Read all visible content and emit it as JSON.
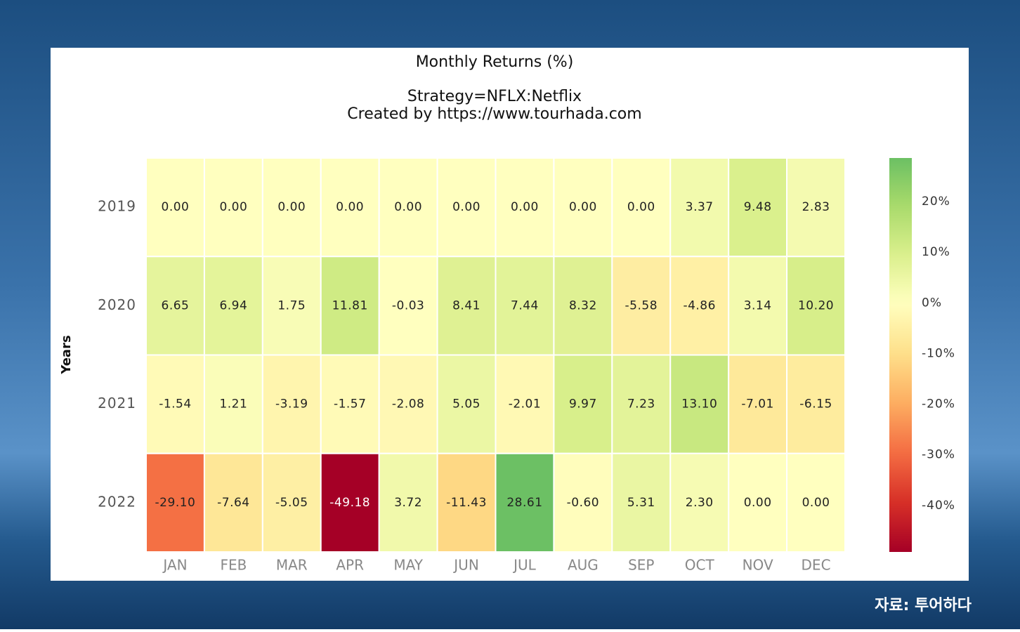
{
  "chart_data": {
    "type": "heatmap",
    "title": "Monthly Returns (%)",
    "subtitle": [
      "Strategy=NFLX:Netflix",
      "Created by https://www.tourhada.com"
    ],
    "y_label": "Years",
    "categories": [
      "JAN",
      "FEB",
      "MAR",
      "APR",
      "MAY",
      "JUN",
      "JUL",
      "AUG",
      "SEP",
      "OCT",
      "NOV",
      "DEC"
    ],
    "rows": [
      "2019",
      "2020",
      "2021",
      "2022"
    ],
    "values": [
      [
        0,
        0,
        0,
        0,
        0,
        0,
        0,
        0,
        0,
        3.37,
        9.48,
        2.83
      ],
      [
        6.65,
        6.94,
        1.75,
        11.81,
        -0.03,
        8.41,
        7.44,
        8.32,
        -5.58,
        -4.86,
        3.14,
        10.2
      ],
      [
        -1.54,
        1.21,
        -3.19,
        -1.57,
        -2.08,
        5.05,
        -2.01,
        9.97,
        7.23,
        13.1,
        -7.01,
        -6.15
      ],
      [
        -29.1,
        -7.64,
        -5.05,
        -49.18,
        3.72,
        -11.43,
        28.61,
        -0.6,
        5.31,
        2.3,
        0,
        0
      ]
    ],
    "value_labels": [
      [
        "0.00",
        "0.00",
        "0.00",
        "0.00",
        "0.00",
        "0.00",
        "0.00",
        "0.00",
        "0.00",
        "3.37",
        "9.48",
        "2.83"
      ],
      [
        "6.65",
        "6.94",
        "1.75",
        "11.81",
        "-0.03",
        "8.41",
        "7.44",
        "8.32",
        "-5.58",
        "-4.86",
        "3.14",
        "10.20"
      ],
      [
        "-1.54",
        "1.21",
        "-3.19",
        "-1.57",
        "-2.08",
        "5.05",
        "-2.01",
        "9.97",
        "7.23",
        "13.10",
        "-7.01",
        "-6.15"
      ],
      [
        "-29.10",
        "-7.64",
        "-5.05",
        "-49.18",
        "3.72",
        "-11.43",
        "28.61",
        "-0.60",
        "5.31",
        "2.30",
        "0.00",
        "0.00"
      ]
    ],
    "colorscale": [
      "#a50026",
      "#d73027",
      "#f46d43",
      "#fdae61",
      "#fee08b",
      "#ffffbf",
      "#d9ef8b",
      "#a6d96a",
      "#66bd63",
      "#1a9850",
      "#006837"
    ],
    "clim": [
      -49.18,
      28.61
    ],
    "cticks": [
      {
        "value": 20,
        "label": "20%"
      },
      {
        "value": 10,
        "label": "10%"
      },
      {
        "value": 0,
        "label": "0%"
      },
      {
        "value": -10,
        "label": "-10%"
      },
      {
        "value": -20,
        "label": "-20%"
      },
      {
        "value": -30,
        "label": "-30%"
      },
      {
        "value": -40,
        "label": "-40%"
      }
    ]
  },
  "source": "자료: 투어하다"
}
